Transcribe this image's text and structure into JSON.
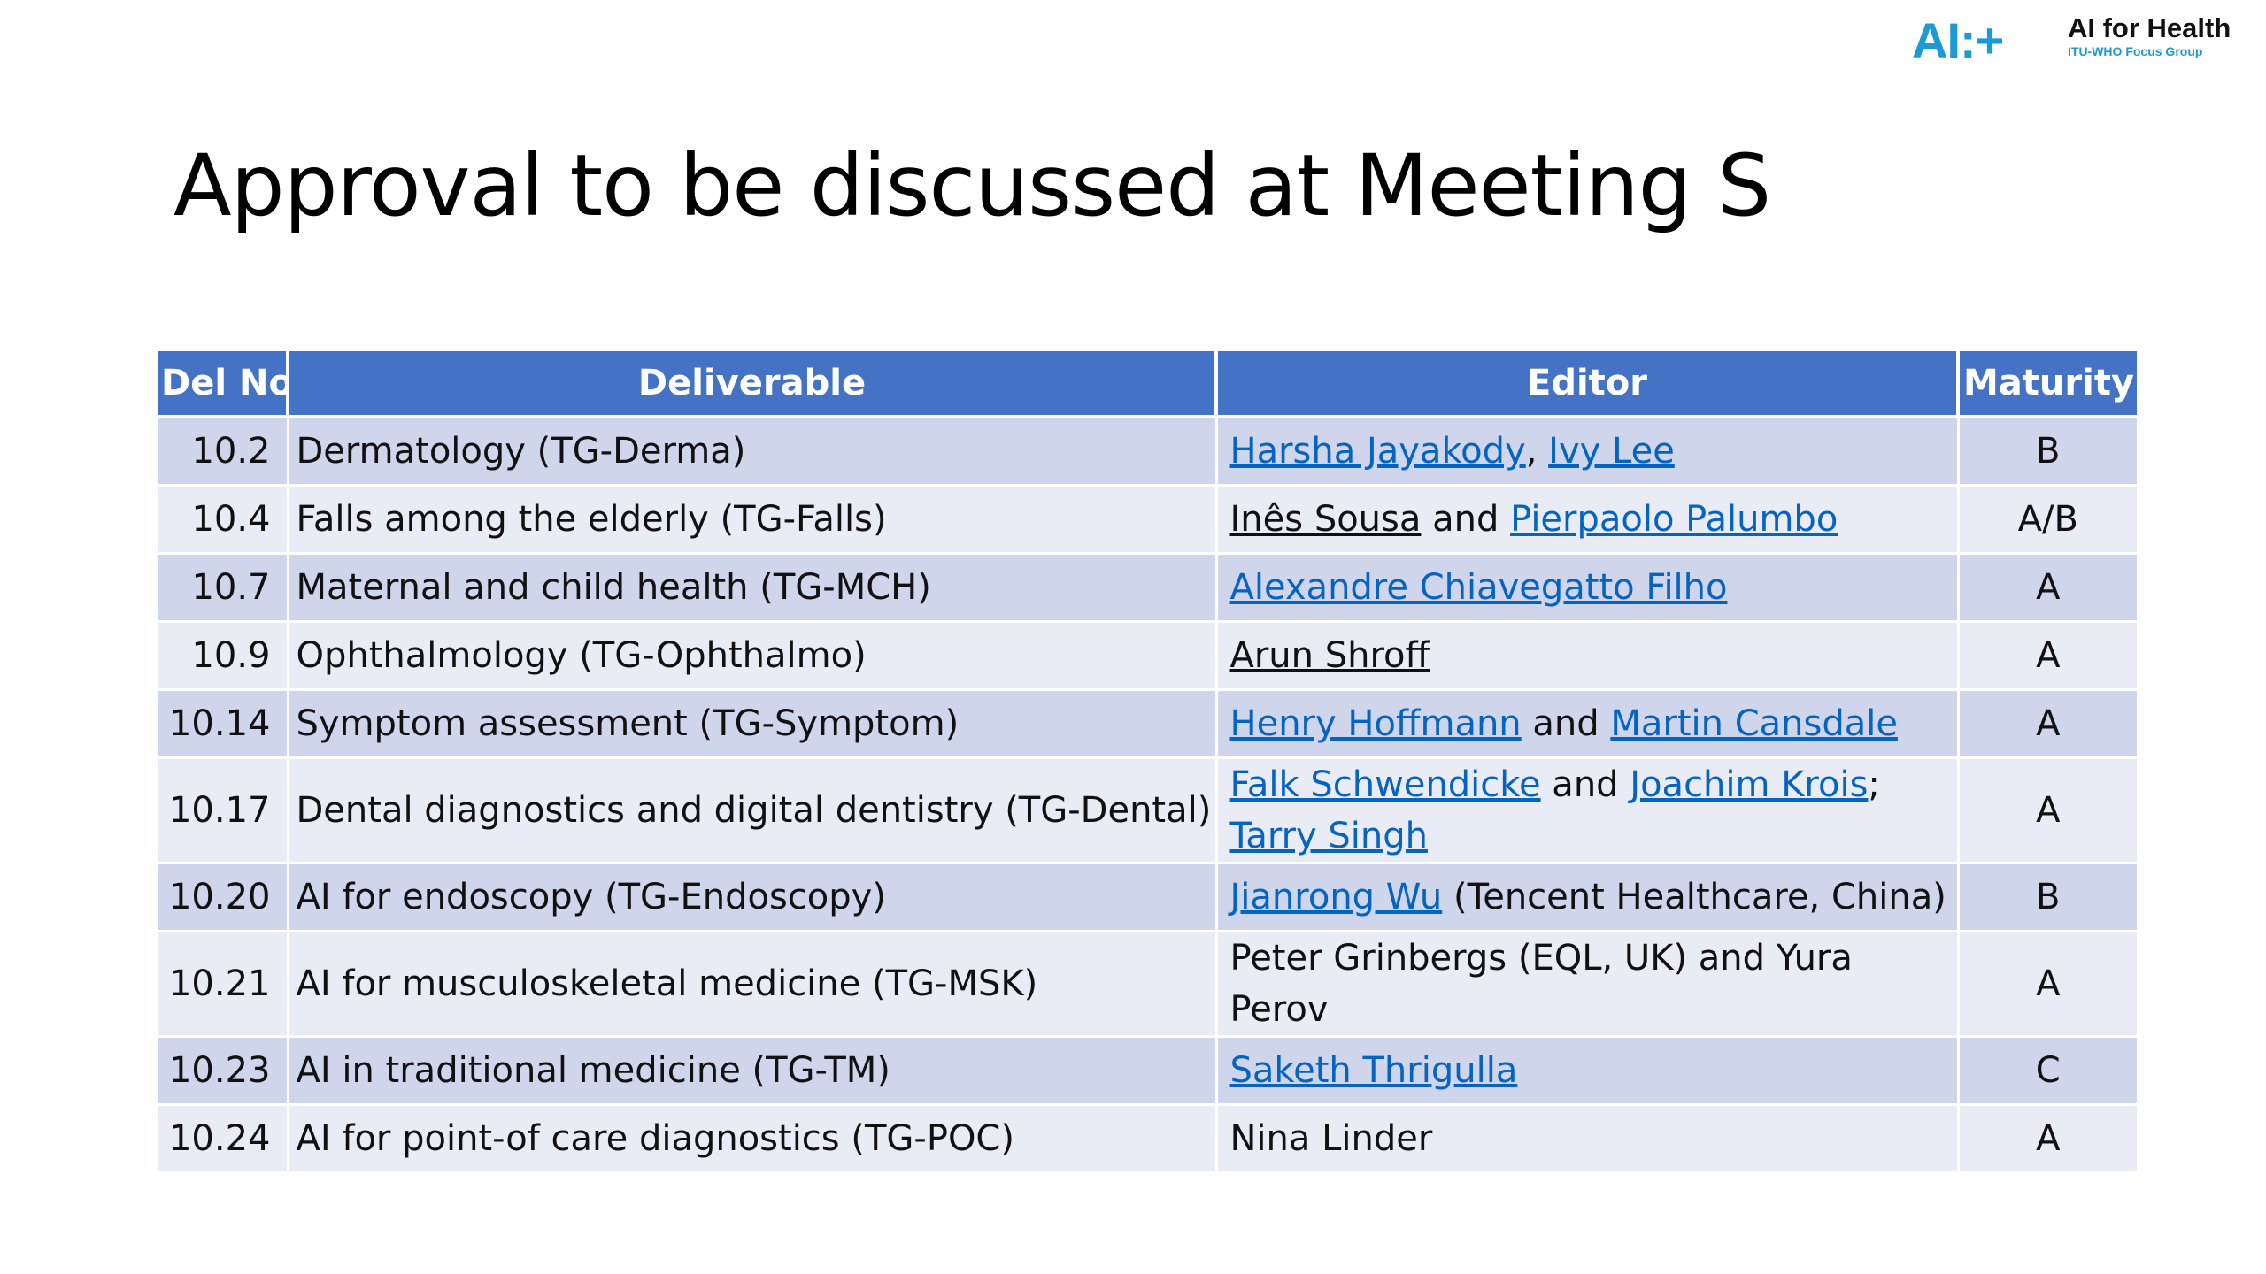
{
  "slide": {
    "title": "Approval to be discussed at Meeting S"
  },
  "logo": {
    "mark": "AI:+",
    "title": "AI for Health",
    "subtitle": "ITU-WHO Focus Group"
  },
  "table": {
    "headers": {
      "del_no": "Del No",
      "deliverable": "Deliverable",
      "editor": "Editor",
      "maturity": "Maturity"
    },
    "rows": [
      {
        "del_no": "10.2",
        "deliverable": "Dermatology (TG-Derma)",
        "editor": {
          "name1": "Harsha Jayakody",
          "sep1": ", ",
          "name2": "Ivy Lee"
        },
        "maturity": "B"
      },
      {
        "del_no": "10.4",
        "deliverable": "Falls among the elderly (TG-Falls)",
        "editor": {
          "name1": "Inês Sousa",
          "sep1": " and ",
          "name2": "Pierpaolo Palumbo"
        },
        "maturity": "A/B"
      },
      {
        "del_no": "10.7",
        "deliverable": "Maternal and child health (TG-MCH)",
        "editor": {
          "name1": "Alexandre Chiavegatto Filho"
        },
        "maturity": "A"
      },
      {
        "del_no": "10.9",
        "deliverable": "Ophthalmology (TG-Ophthalmo)",
        "editor": {
          "name1": "Arun Shroff"
        },
        "maturity": "A"
      },
      {
        "del_no": "10.14",
        "deliverable": "Symptom assessment (TG-Symptom)",
        "editor": {
          "name1": "Henry Hoffmann",
          "sep1": " and ",
          "name2": "Martin Cansdale"
        },
        "maturity": "A"
      },
      {
        "del_no": "10.17",
        "deliverable": "Dental diagnostics and digital dentistry (TG-Dental)",
        "editor": {
          "name1": "Falk Schwendicke",
          "sep1": " and ",
          "name2": "Joachim Krois",
          "sep2": ";",
          "name3": "Tarry Singh"
        },
        "maturity": "A"
      },
      {
        "del_no": "10.20",
        "deliverable": "AI for endoscopy (TG-Endoscopy)",
        "editor": {
          "name1": "Jianrong Wu",
          "sep1": " (Tencent Healthcare, China)"
        },
        "maturity": "B"
      },
      {
        "del_no": "10.21",
        "deliverable": "AI for musculoskeletal medicine (TG-MSK)",
        "editor": {
          "text": "Peter Grinbergs (EQL, UK) and Yura Perov"
        },
        "maturity": "A"
      },
      {
        "del_no": "10.23",
        "deliverable": "AI in traditional medicine (TG-TM)",
        "editor": {
          "name1": "Saketh Thrigulla"
        },
        "maturity": "C"
      },
      {
        "del_no": "10.24",
        "deliverable": "AI for point-of care diagnostics (TG-POC)",
        "editor": {
          "text": "Nina Linder"
        },
        "maturity": "A"
      }
    ]
  }
}
